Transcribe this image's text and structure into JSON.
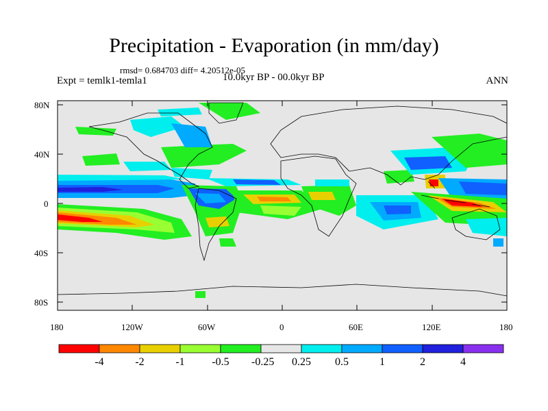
{
  "title": "Precipitation - Evaporation (in mm/day)",
  "stats": "rmsd= 0.684703 diff= 4.20512e-05",
  "experiment": "Expt = temlk1-temla1",
  "period": "10.0kyr BP - 00.0kyr BP",
  "season": "ANN",
  "map": {
    "lat_ticks": [
      "80N",
      "40N",
      "0",
      "40S",
      "80S"
    ],
    "lon_ticks": [
      "180",
      "120W",
      "60W",
      "0",
      "60E",
      "120E",
      "180"
    ],
    "background_color": "#e6e6e6"
  },
  "colorbar": {
    "labels": [
      "-4",
      "-2",
      "-1",
      "-0.5",
      "-0.25",
      "0.25",
      "0.5",
      "1",
      "2",
      "4"
    ],
    "colors": [
      "#ff0000",
      "#ff8800",
      "#e8d000",
      "#99ff33",
      "#22ee22",
      "#e6e6e6",
      "#00eeee",
      "#00aaff",
      "#1060ff",
      "#2020dd",
      "#8830ee"
    ]
  },
  "legend_colors": {
    "red": "#ff0000",
    "orange": "#ff8800",
    "yellow": "#e8d000",
    "lightgreen": "#99ff33",
    "green": "#22ee22",
    "grey": "#e6e6e6",
    "cyan": "#00eeee",
    "lightblue": "#00aaff",
    "blue": "#1060ff",
    "darkblue": "#2020dd"
  }
}
